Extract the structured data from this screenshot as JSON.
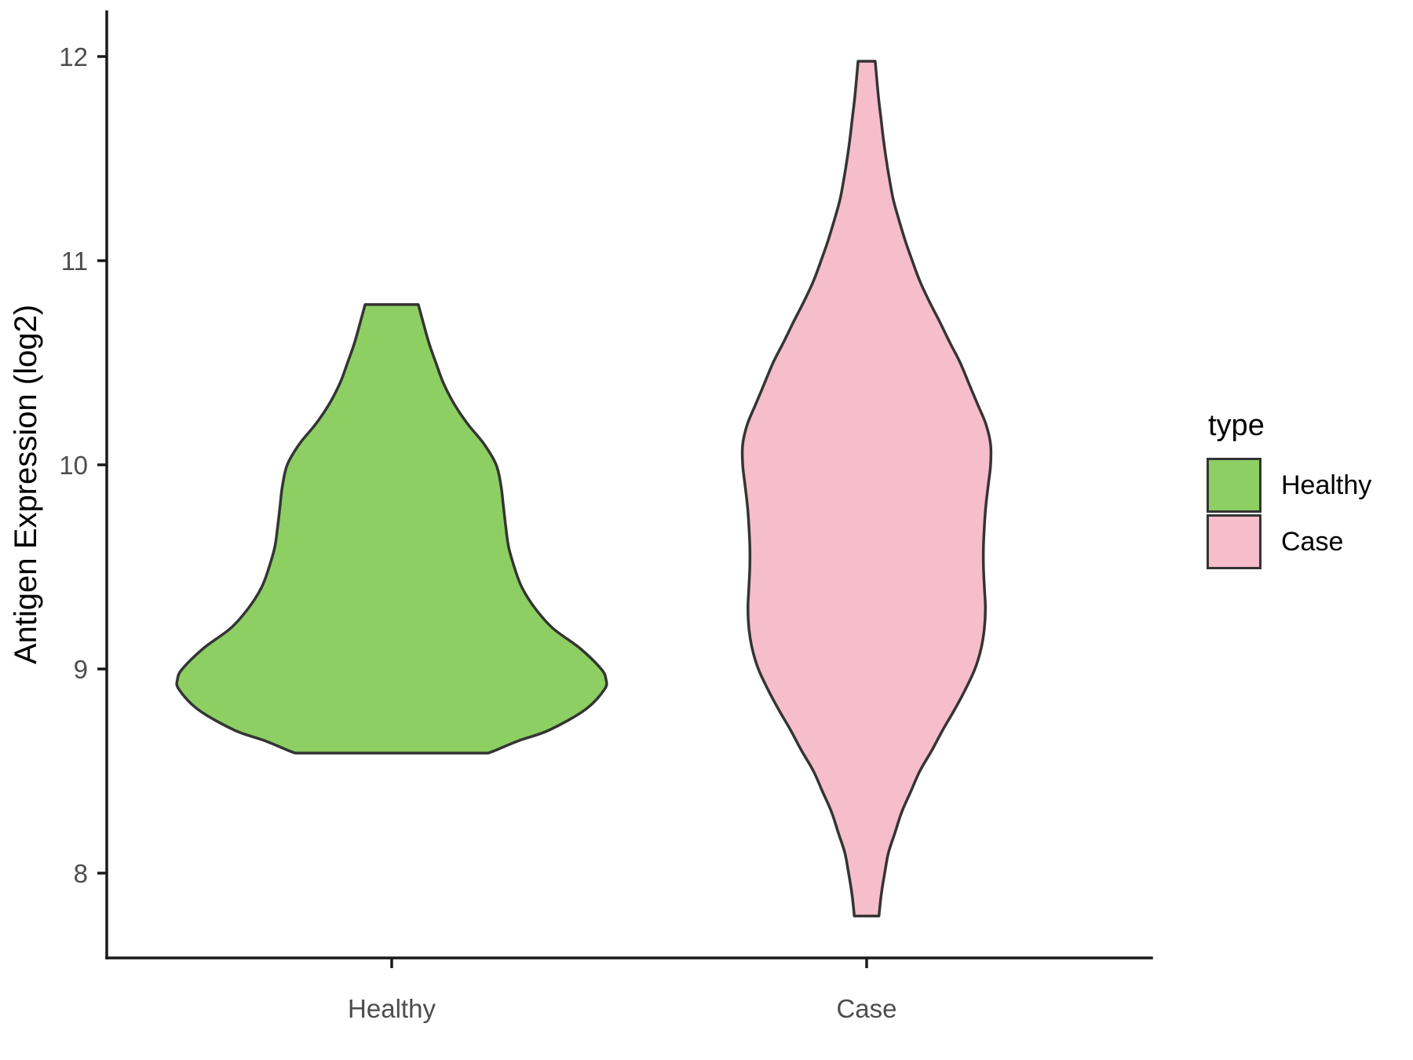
{
  "chart_data": {
    "type": "violin",
    "title": "",
    "xlabel": "",
    "ylabel": "Antigen Expression (log2)",
    "categories": [
      "Healthy",
      "Case"
    ],
    "y_axis": {
      "ticks": [
        8,
        9,
        10,
        11,
        12
      ],
      "range_shown": [
        7.59,
        12.22
      ],
      "grid": false
    },
    "legend": {
      "title": "type",
      "position": "right",
      "entries": [
        {
          "label": "Healthy",
          "color": "#8DCF63"
        },
        {
          "label": "Case",
          "color": "#F6BDCB"
        }
      ]
    },
    "style": {
      "outline_color": "#343434",
      "axis_color": "#1A1A1A",
      "tick_label_color": "#4D4D4D",
      "background": "#FFFFFF"
    },
    "series": [
      {
        "name": "Healthy",
        "fill": "#8DCF63",
        "category_index": 0,
        "summary": {
          "min": 8.59,
          "max": 10.79,
          "widest_at": 9.0,
          "max_halfwidth": 0.451
        },
        "profile": [
          [
            10.785,
            0.056
          ],
          [
            10.7,
            0.066
          ],
          [
            10.6,
            0.078
          ],
          [
            10.5,
            0.093
          ],
          [
            10.4,
            0.109
          ],
          [
            10.3,
            0.131
          ],
          [
            10.2,
            0.16
          ],
          [
            10.1,
            0.195
          ],
          [
            10.0,
            0.22
          ],
          [
            9.9,
            0.23
          ],
          [
            9.8,
            0.235
          ],
          [
            9.7,
            0.24
          ],
          [
            9.6,
            0.246
          ],
          [
            9.5,
            0.258
          ],
          [
            9.4,
            0.274
          ],
          [
            9.3,
            0.301
          ],
          [
            9.2,
            0.339
          ],
          [
            9.1,
            0.397
          ],
          [
            9.0,
            0.441
          ],
          [
            8.95,
            0.451
          ],
          [
            8.9,
            0.448
          ],
          [
            8.8,
            0.407
          ],
          [
            8.7,
            0.331
          ],
          [
            8.65,
            0.269
          ],
          [
            8.6,
            0.217
          ],
          [
            8.588,
            0.203
          ]
        ]
      },
      {
        "name": "Case",
        "fill": "#F6BDCB",
        "category_index": 1,
        "summary": {
          "min": 7.79,
          "max": 11.98,
          "widest_at": 10.05,
          "max_halfwidth": 0.261
        },
        "profile": [
          [
            11.977,
            0.018
          ],
          [
            11.9,
            0.021
          ],
          [
            11.8,
            0.025
          ],
          [
            11.7,
            0.03
          ],
          [
            11.6,
            0.035
          ],
          [
            11.5,
            0.041
          ],
          [
            11.4,
            0.048
          ],
          [
            11.3,
            0.056
          ],
          [
            11.2,
            0.068
          ],
          [
            11.1,
            0.081
          ],
          [
            11.0,
            0.096
          ],
          [
            10.9,
            0.112
          ],
          [
            10.8,
            0.132
          ],
          [
            10.7,
            0.154
          ],
          [
            10.6,
            0.175
          ],
          [
            10.5,
            0.197
          ],
          [
            10.4,
            0.215
          ],
          [
            10.3,
            0.233
          ],
          [
            10.2,
            0.251
          ],
          [
            10.1,
            0.261
          ],
          [
            10.0,
            0.261
          ],
          [
            9.9,
            0.256
          ],
          [
            9.8,
            0.251
          ],
          [
            9.7,
            0.248
          ],
          [
            9.6,
            0.246
          ],
          [
            9.5,
            0.246
          ],
          [
            9.4,
            0.248
          ],
          [
            9.3,
            0.25
          ],
          [
            9.2,
            0.248
          ],
          [
            9.1,
            0.241
          ],
          [
            9.0,
            0.228
          ],
          [
            8.9,
            0.208
          ],
          [
            8.8,
            0.185
          ],
          [
            8.7,
            0.16
          ],
          [
            8.6,
            0.137
          ],
          [
            8.5,
            0.112
          ],
          [
            8.4,
            0.093
          ],
          [
            8.3,
            0.074
          ],
          [
            8.2,
            0.06
          ],
          [
            8.1,
            0.046
          ],
          [
            8.0,
            0.038
          ],
          [
            7.9,
            0.031
          ],
          [
            7.79,
            0.026
          ]
        ]
      }
    ]
  }
}
